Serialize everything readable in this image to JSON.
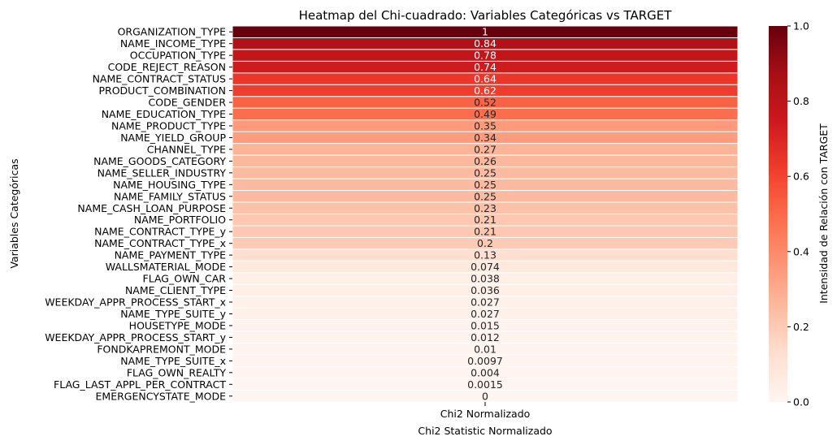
{
  "chart_data": {
    "type": "heatmap",
    "title": "Heatmap del Chi-cuadrado: Variables Categóricas vs TARGET",
    "xlabel": "Chi2 Statistic Normalizado",
    "ylabel": "Variables Categóricas",
    "x_categories": [
      "Chi2 Normalizado"
    ],
    "categories": [
      "ORGANIZATION_TYPE",
      "NAME_INCOME_TYPE",
      "OCCUPATION_TYPE",
      "CODE_REJECT_REASON",
      "NAME_CONTRACT_STATUS",
      "PRODUCT_COMBINATION",
      "CODE_GENDER",
      "NAME_EDUCATION_TYPE",
      "NAME_PRODUCT_TYPE",
      "NAME_YIELD_GROUP",
      "CHANNEL_TYPE",
      "NAME_GOODS_CATEGORY",
      "NAME_SELLER_INDUSTRY",
      "NAME_HOUSING_TYPE",
      "NAME_FAMILY_STATUS",
      "NAME_CASH_LOAN_PURPOSE",
      "NAME_PORTFOLIO",
      "NAME_CONTRACT_TYPE_y",
      "NAME_CONTRACT_TYPE_x",
      "NAME_PAYMENT_TYPE",
      "WALLSMATERIAL_MODE",
      "FLAG_OWN_CAR",
      "NAME_CLIENT_TYPE",
      "WEEKDAY_APPR_PROCESS_START_x",
      "NAME_TYPE_SUITE_y",
      "HOUSETYPE_MODE",
      "WEEKDAY_APPR_PROCESS_START_y",
      "FONDKAPREMONT_MODE",
      "NAME_TYPE_SUITE_x",
      "FLAG_OWN_REALTY",
      "FLAG_LAST_APPL_PER_CONTRACT",
      "EMERGENCYSTATE_MODE"
    ],
    "values": [
      1,
      0.84,
      0.78,
      0.74,
      0.64,
      0.62,
      0.52,
      0.49,
      0.35,
      0.34,
      0.27,
      0.26,
      0.25,
      0.25,
      0.25,
      0.23,
      0.21,
      0.21,
      0.2,
      0.13,
      0.074,
      0.038,
      0.036,
      0.027,
      0.027,
      0.015,
      0.012,
      0.01,
      0.0097,
      0.004,
      0.0015,
      0
    ],
    "value_labels": [
      "1",
      "0.84",
      "0.78",
      "0.74",
      "0.64",
      "0.62",
      "0.52",
      "0.49",
      "0.35",
      "0.34",
      "0.27",
      "0.26",
      "0.25",
      "0.25",
      "0.25",
      "0.23",
      "0.21",
      "0.21",
      "0.2",
      "0.13",
      "0.074",
      "0.038",
      "0.036",
      "0.027",
      "0.027",
      "0.015",
      "0.012",
      "0.01",
      "0.0097",
      "0.004",
      "0.0015",
      "0"
    ],
    "colormap": "Reds",
    "colorbar": {
      "label": "Intensidad de Relación con TARGET",
      "range": [
        0,
        1
      ],
      "ticks": [
        "0.0",
        "0.2",
        "0.4",
        "0.6",
        "0.8",
        "1.0"
      ]
    }
  }
}
